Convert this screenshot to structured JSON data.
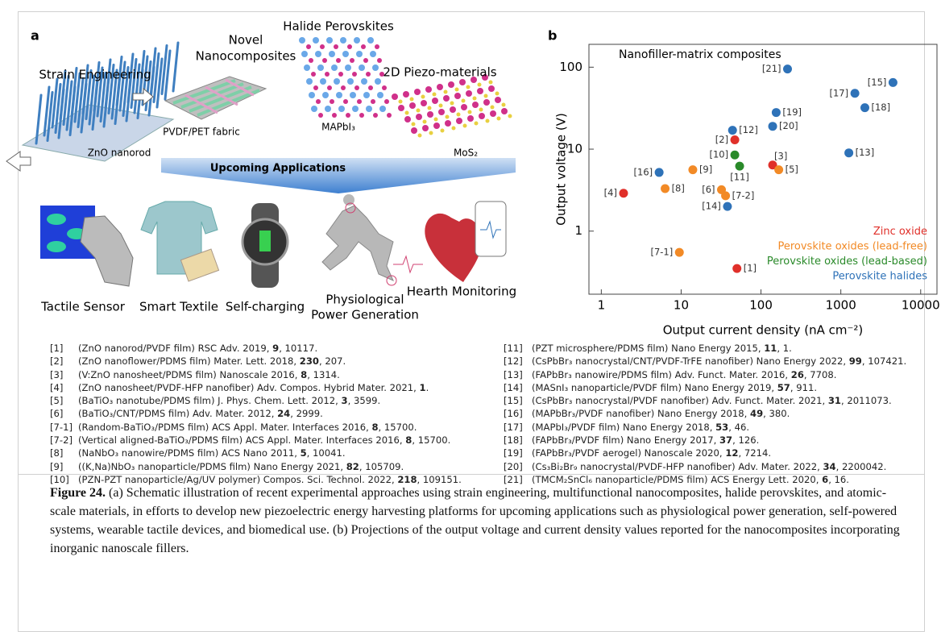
{
  "panel_a": {
    "label": "a",
    "strain": "Strain Engineering",
    "zno": "ZnO nanorod",
    "novel": [
      "Novel",
      "Nanocomposites"
    ],
    "fabric": "PVDF/PET fabric",
    "halide": "Halide Perovskites",
    "mapbi": "MAPbI₃",
    "piezo2d": "2D Piezo-materials",
    "mos2": "MoS₂",
    "banner": "Upcoming Applications",
    "applications": [
      "Tactile Sensor",
      "Smart Textile",
      "Self-charging",
      "Physiological",
      "Power Generation",
      "Hearth Monitoring"
    ]
  },
  "chart_data": {
    "type": "scatter",
    "panel_label": "b",
    "title": "Nanofiller-matrix composites",
    "x_label": "Output current density (nA cm⁻²)",
    "y_label": "Output voltage (V)",
    "xscale": "log",
    "yscale": "log",
    "xlim": [
      0.7,
      16000
    ],
    "ylim": [
      0.17,
      190
    ],
    "xticks": [
      1,
      10,
      100,
      1000,
      10000
    ],
    "yticks": [
      1,
      10,
      100
    ],
    "legend": "lower right",
    "series": [
      {
        "name": "Zinc oxide",
        "color": "#e0302a",
        "labels": [
          "[1]",
          "[2]",
          "[3]",
          "[4]"
        ],
        "x": [
          50,
          47,
          140,
          1.9
        ],
        "values": [
          0.35,
          13,
          6.4,
          2.9
        ]
      },
      {
        "name": "Perovskite oxides (lead-free)",
        "color": "#f28a26",
        "labels": [
          "[5]",
          "[6]",
          "[7-1]",
          "[7-2]",
          "[8]",
          "[9]"
        ],
        "x": [
          167,
          32,
          9.5,
          36,
          6.3,
          14
        ],
        "values": [
          5.6,
          3.2,
          0.55,
          2.7,
          3.3,
          5.6
        ]
      },
      {
        "name": "Perovskite oxides (lead-based)",
        "color": "#2a8a2a",
        "labels": [
          "[10]",
          "[11]"
        ],
        "x": [
          47,
          54
        ],
        "values": [
          8.5,
          6.2
        ]
      },
      {
        "name": "Perovskite halides",
        "color": "#2e72b8",
        "labels": [
          "[12]",
          "[13]",
          "[14]",
          "[15]",
          "[16]",
          "[17]",
          "[18]",
          "[19]",
          "[20]",
          "[21]"
        ],
        "x": [
          44,
          1260,
          38,
          4500,
          5.3,
          1500,
          2000,
          155,
          140,
          215
        ],
        "values": [
          17,
          9,
          2.0,
          65,
          5.2,
          48,
          32,
          28,
          19,
          95
        ]
      }
    ]
  },
  "references": [
    {
      "tag": "[1]",
      "text": "(ZnO nanorod/PVDF film) RSC Adv. 2019, ",
      "volume": "9",
      "pages": ", 10117."
    },
    {
      "tag": "[2]",
      "text": "(ZnO nanoflower/PDMS film) Mater. Lett. 2018, ",
      "volume": "230",
      "pages": ", 207."
    },
    {
      "tag": "[3]",
      "text": "(V:ZnO nanosheet/PDMS film) Nanoscale 2016, ",
      "volume": "8",
      "pages": ", 1314."
    },
    {
      "tag": "[4]",
      "text": "(ZnO nanosheet/PVDF-HFP nanofiber) Adv. Compos. Hybrid Mater. 2021, ",
      "volume": "1",
      "pages": "."
    },
    {
      "tag": "[5]",
      "text": "(BaTiO₃ nanotube/PDMS film) J. Phys. Chem. Lett. 2012, ",
      "volume": "3",
      "pages": ", 3599."
    },
    {
      "tag": "[6]",
      "text": "(BaTiO₃/CNT/PDMS film) Adv. Mater. 2012, ",
      "volume": "24",
      "pages": ", 2999."
    },
    {
      "tag": "[7-1]",
      "text": "(Random-BaTiO₃/PDMS film) ACS Appl. Mater. Interfaces 2016, ",
      "volume": "8",
      "pages": ", 15700."
    },
    {
      "tag": "[7-2]",
      "text": "(Vertical aligned-BaTiO₃/PDMS film) ACS Appl. Mater. Interfaces 2016, ",
      "volume": "8",
      "pages": ", 15700."
    },
    {
      "tag": "[8]",
      "text": "(NaNbO₃ nanowire/PDMS film) ACS Nano 2011, ",
      "volume": "5",
      "pages": ", 10041."
    },
    {
      "tag": "[9]",
      "text": "((K,Na)NbO₃ nanoparticle/PDMS film) Nano Energy 2021, ",
      "volume": "82",
      "pages": ", 105709."
    },
    {
      "tag": "[10]",
      "text": "(PZN-PZT nanoparticle/Ag/UV polymer) Compos. Sci. Technol. 2022, ",
      "volume": "218",
      "pages": ", 109151."
    },
    {
      "tag": "[11]",
      "text": "(PZT microsphere/PDMS film) Nano Energy 2015, ",
      "volume": "11",
      "pages": ", 1."
    },
    {
      "tag": "[12]",
      "text": "(CsPbBr₃ nanocrystal/CNT/PVDF-TrFE nanofiber) Nano Energy 2022, ",
      "volume": "99",
      "pages": ", 107421."
    },
    {
      "tag": "[13]",
      "text": "(FAPbBr₃ nanowire/PDMS film) Adv. Funct. Mater. 2016, ",
      "volume": "26",
      "pages": ", 7708."
    },
    {
      "tag": "[14]",
      "text": "(MASnI₃ nanoparticle/PVDF film) Nano Energy 2019, ",
      "volume": "57",
      "pages": ", 911."
    },
    {
      "tag": "[15]",
      "text": "(CsPbBr₃ nanocrystal/PVDF nanofiber) Adv. Funct. Mater. 2021, ",
      "volume": "31",
      "pages": ", 2011073."
    },
    {
      "tag": "[16]",
      "text": "(MAPbBr₃/PVDF nanofiber) Nano Energy 2018, ",
      "volume": "49",
      "pages": ", 380."
    },
    {
      "tag": "[17]",
      "text": "(MAPbI₃/PVDF film) Nano Energy 2018, ",
      "volume": "53",
      "pages": ", 46."
    },
    {
      "tag": "[18]",
      "text": "(FAPbBr₃/PVDF film) Nano Energy 2017, ",
      "volume": "37",
      "pages": ", 126."
    },
    {
      "tag": "[19]",
      "text": "(FAPbBr₃/PVDF aerogel) Nanoscale 2020, ",
      "volume": "12",
      "pages": ", 7214."
    },
    {
      "tag": "[20]",
      "text": "(Cs₃Bi₂Br₉ nanocrystal/PVDF-HFP nanofiber) Adv. Mater. 2022, ",
      "volume": "34",
      "pages": ", 2200042."
    },
    {
      "tag": "[21]",
      "text": "(TMCM₂SnCl₆ nanoparticle/PDMS film) ACS Energy Lett. 2020, ",
      "volume": "6",
      "pages": ", 16."
    }
  ],
  "caption": {
    "label": "Figure 24.",
    "text": " (a) Schematic illustration of recent experimental approaches using strain engineering, multifunctional nanocomposites, halide perovskites, and atomic-scale materials, in efforts to develop new piezoelectric energy harvesting platforms for upcoming applications such as physiological power generation, self-powered systems, wearable tactile devices, and biomedical use. (b) Projections of the output voltage and current density values reported for the nanocomposites incorporating inorganic nanoscale fillers."
  }
}
